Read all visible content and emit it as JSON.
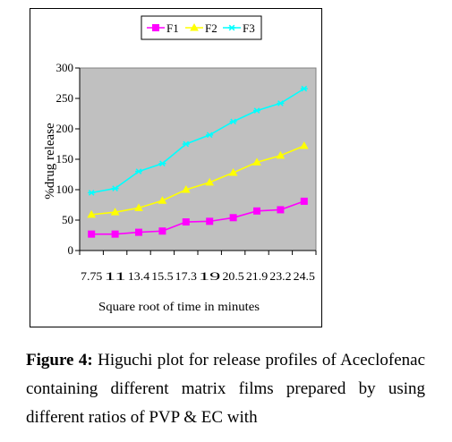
{
  "chart_data": {
    "type": "line",
    "categories": [
      "7.75",
      "11",
      "13.4",
      "15.5",
      "17.3",
      "19",
      "20.5",
      "21.9",
      "23.2",
      "24.5"
    ],
    "series": [
      {
        "name": "F1",
        "values": [
          27,
          27,
          30,
          32,
          47,
          48,
          54,
          65,
          67,
          81
        ],
        "color": "#ff00ff",
        "marker": "square"
      },
      {
        "name": "F2",
        "values": [
          59,
          63,
          70,
          82,
          100,
          112,
          128,
          145,
          156,
          172
        ],
        "color": "#ffff00",
        "marker": "triangle"
      },
      {
        "name": "F3",
        "values": [
          95,
          102,
          130,
          143,
          175,
          190,
          212,
          230,
          242,
          266
        ],
        "color": "#00ffff",
        "marker": "asterisk"
      }
    ],
    "xlabel": "Square root of time in minutes",
    "ylabel": "%drug release",
    "ylim": [
      0,
      300
    ],
    "yticks": [
      0,
      50,
      100,
      150,
      200,
      250,
      300
    ],
    "grid": false,
    "plot_background": "#c0c0c0",
    "legend_position": "top"
  },
  "caption": {
    "label": "Figure 4:",
    "text": "Higuchi plot for release profiles of Aceclofenac containing different matrix films prepared by using different ratios of PVP & EC with"
  }
}
